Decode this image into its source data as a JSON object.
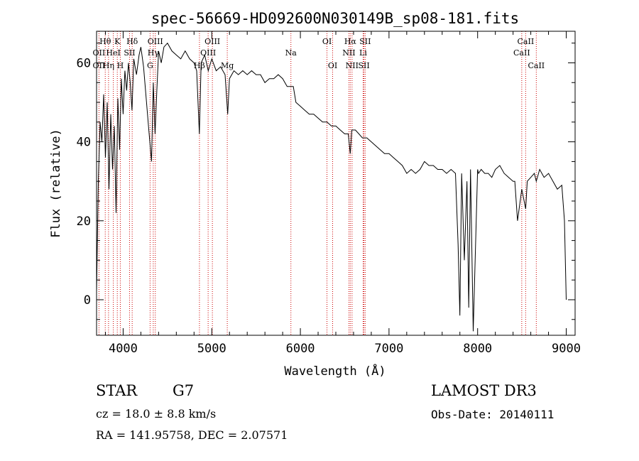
{
  "chart_data": {
    "type": "line",
    "title": "spec-56669-HD092600N030149B_sp08-181.fits",
    "xlabel": "Wavelength (Å)",
    "ylabel": "Flux (relative)",
    "xlim": [
      3700,
      9100
    ],
    "ylim": [
      -9,
      68
    ],
    "xticks": [
      4000,
      5000,
      6000,
      7000,
      8000,
      9000
    ],
    "xtick_labels": [
      "4000",
      "5000",
      "6000",
      "7000",
      "8000",
      "9000"
    ],
    "yticks": [
      0,
      20,
      40,
      60
    ],
    "ytick_labels": [
      "0",
      "20",
      "40",
      "60"
    ],
    "grid": false,
    "series": [
      {
        "name": "spectrum",
        "x": [
          3700,
          3720,
          3740,
          3760,
          3780,
          3800,
          3820,
          3840,
          3860,
          3880,
          3900,
          3920,
          3940,
          3960,
          3980,
          4000,
          4020,
          4040,
          4060,
          4080,
          4100,
          4120,
          4150,
          4180,
          4200,
          4230,
          4260,
          4290,
          4320,
          4340,
          4360,
          4380,
          4400,
          4430,
          4460,
          4500,
          4550,
          4600,
          4650,
          4700,
          4750,
          4800,
          4830,
          4860,
          4880,
          4920,
          4960,
          5000,
          5050,
          5100,
          5150,
          5180,
          5200,
          5250,
          5300,
          5350,
          5400,
          5450,
          5500,
          5550,
          5600,
          5650,
          5700,
          5750,
          5800,
          5850,
          5890,
          5920,
          5950,
          6000,
          6050,
          6100,
          6150,
          6200,
          6250,
          6300,
          6350,
          6400,
          6450,
          6500,
          6540,
          6563,
          6580,
          6620,
          6660,
          6700,
          6750,
          6800,
          6850,
          6900,
          6950,
          7000,
          7050,
          7100,
          7150,
          7200,
          7250,
          7300,
          7350,
          7400,
          7450,
          7500,
          7550,
          7600,
          7650,
          7700,
          7750,
          7780,
          7800,
          7820,
          7850,
          7880,
          7900,
          7920,
          7950,
          8000,
          8010,
          8040,
          8080,
          8120,
          8160,
          8200,
          8250,
          8300,
          8350,
          8400,
          8420,
          8450,
          8498,
          8542,
          8560,
          8600,
          8640,
          8662,
          8700,
          8750,
          8800,
          8850,
          8900,
          8950,
          8980,
          9000
        ],
        "values": [
          2,
          30,
          45,
          40,
          52,
          36,
          50,
          28,
          47,
          33,
          44,
          22,
          51,
          38,
          56,
          47,
          58,
          53,
          60,
          55,
          48,
          61,
          57,
          62,
          64,
          59,
          51,
          43,
          35,
          55,
          42,
          53,
          63,
          60,
          64,
          65,
          63,
          62,
          61,
          63,
          61,
          60,
          58,
          42,
          60,
          62,
          58,
          61,
          58,
          59,
          57,
          47,
          56,
          58,
          57,
          58,
          57,
          58,
          57,
          57,
          55,
          56,
          56,
          57,
          56,
          54,
          54,
          54,
          50,
          49,
          48,
          47,
          47,
          46,
          45,
          45,
          44,
          44,
          43,
          42,
          42,
          37,
          43,
          43,
          42,
          41,
          41,
          40,
          39,
          38,
          37,
          37,
          36,
          35,
          34,
          32,
          33,
          32,
          33,
          35,
          34,
          34,
          33,
          33,
          32,
          33,
          32,
          14,
          -4,
          32,
          10,
          30,
          -2,
          33,
          -8,
          33,
          32,
          33,
          32,
          32,
          31,
          33,
          34,
          32,
          31,
          30,
          30,
          20,
          28,
          23,
          30,
          31,
          32,
          30,
          33,
          31,
          32,
          30,
          28,
          29,
          20,
          0
        ]
      }
    ],
    "line_labels": [
      {
        "name": "Hθ",
        "x": 3798,
        "row": 1
      },
      {
        "name": "OII",
        "x": 3727,
        "row": 2
      },
      {
        "name": "OII",
        "x": 3727,
        "row": 3
      },
      {
        "name": "K",
        "x": 3934,
        "row": 1
      },
      {
        "name": "HeI",
        "x": 3889,
        "row": 2
      },
      {
        "name": "Hη",
        "x": 3835,
        "row": 3
      },
      {
        "name": "H",
        "x": 3968,
        "row": 3
      },
      {
        "name": "Hδ",
        "x": 4102,
        "row": 1
      },
      {
        "name": "SII",
        "x": 4072,
        "row": 2
      },
      {
        "name": "OIII",
        "x": 4363,
        "row": 1
      },
      {
        "name": "Hγ",
        "x": 4340,
        "row": 2
      },
      {
        "name": "G",
        "x": 4304,
        "row": 3
      },
      {
        "name": "OIII",
        "x": 5007,
        "row": 1
      },
      {
        "name": "OIII",
        "x": 4959,
        "row": 2
      },
      {
        "name": "Hβ",
        "x": 4861,
        "row": 3
      },
      {
        "name": "Mg",
        "x": 5175,
        "row": 3
      },
      {
        "name": "Na",
        "x": 5893,
        "row": 2
      },
      {
        "name": "OI",
        "x": 6300,
        "row": 1
      },
      {
        "name": "OI",
        "x": 6364,
        "row": 3
      },
      {
        "name": "Hα",
        "x": 6563,
        "row": 1
      },
      {
        "name": "SII",
        "x": 6731,
        "row": 1
      },
      {
        "name": "NII",
        "x": 6548,
        "row": 2
      },
      {
        "name": "Li",
        "x": 6708,
        "row": 2
      },
      {
        "name": "NII",
        "x": 6583,
        "row": 3
      },
      {
        "name": "SII",
        "x": 6717,
        "row": 3
      },
      {
        "name": "CaII",
        "x": 8542,
        "row": 1
      },
      {
        "name": "CaII",
        "x": 8498,
        "row": 2
      },
      {
        "name": "CaII",
        "x": 8662,
        "row": 3
      }
    ],
    "marker_lines": [
      3727,
      3798,
      3835,
      3889,
      3934,
      3968,
      4072,
      4102,
      4304,
      4340,
      4363,
      4861,
      4959,
      5007,
      5175,
      5893,
      6300,
      6364,
      6548,
      6563,
      6583,
      6708,
      6717,
      6731,
      8498,
      8542,
      8662
    ],
    "marker_color": "#cc0000"
  },
  "info": {
    "object_class": "STAR",
    "subclass": "G7",
    "survey": "LAMOST DR3",
    "redshift": "cz = 18.0 ± 8.8 km/s",
    "obs_date": "Obs-Date: 20140111",
    "coords": "RA = 141.95758, DEC =    2.07571"
  }
}
